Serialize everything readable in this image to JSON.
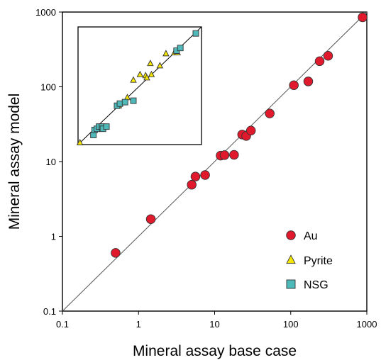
{
  "chart_data": {
    "type": "scatter",
    "xlabel": "Mineral assay base case",
    "ylabel": "Mineral assay model",
    "xscale": "log",
    "yscale": "log",
    "xlim": [
      0.1,
      1000
    ],
    "ylim": [
      0.1,
      1000
    ],
    "x_ticks": [
      "0.1",
      "1",
      "10",
      "100",
      "1000"
    ],
    "y_ticks": [
      "0.1",
      "1",
      "10",
      "100",
      "1000"
    ],
    "reference_line": "y = x",
    "grid": false,
    "legend_position": "bottom-right",
    "series": [
      {
        "name": "Au",
        "marker": "circle",
        "color": "#e0192d",
        "points": [
          [
            0.5,
            0.6
          ],
          [
            1.45,
            1.7
          ],
          [
            5.0,
            4.9
          ],
          [
            5.6,
            6.3
          ],
          [
            7.5,
            6.6
          ],
          [
            12,
            12
          ],
          [
            13.5,
            12.2
          ],
          [
            18,
            12.3
          ],
          [
            23,
            23
          ],
          [
            26,
            22
          ],
          [
            30,
            26
          ],
          [
            53,
            44
          ],
          [
            110,
            105
          ],
          [
            170,
            118
          ],
          [
            240,
            220
          ],
          [
            310,
            260
          ],
          [
            880,
            850
          ]
        ]
      },
      {
        "name": "Pyrite",
        "marker": "triangle",
        "color": "#f5e600",
        "points": []
      },
      {
        "name": "NSG",
        "marker": "square",
        "color": "#4fb8b8",
        "points": []
      }
    ],
    "inset": {
      "xscale": "log",
      "yscale": "log",
      "xlim": [
        0.17,
        7
      ],
      "ylim": [
        0.17,
        7
      ],
      "reference_line": "y = x",
      "series": [
        {
          "name": "Pyrite",
          "points": [
            [
              0.18,
              0.18
            ],
            [
              0.58,
              0.58
            ],
            [
              0.75,
              0.75
            ],
            [
              0.9,
              1.3
            ],
            [
              1.1,
              1.55
            ],
            [
              1.3,
              1.5
            ],
            [
              1.35,
              1.4
            ],
            [
              1.5,
              2.2
            ],
            [
              1.55,
              1.55
            ],
            [
              2.0,
              2.05
            ],
            [
              2.4,
              3.0
            ],
            [
              3.1,
              3.1
            ],
            [
              3.4,
              3.1
            ]
          ]
        },
        {
          "name": "NSG",
          "points": [
            [
              0.27,
              0.23
            ],
            [
              0.28,
              0.27
            ],
            [
              0.3,
              0.28
            ],
            [
              0.32,
              0.3
            ],
            [
              0.35,
              0.3
            ],
            [
              0.36,
              0.28
            ],
            [
              0.4,
              0.3
            ],
            [
              0.55,
              0.58
            ],
            [
              0.6,
              0.62
            ],
            [
              0.7,
              0.65
            ],
            [
              0.9,
              0.68
            ],
            [
              3.3,
              3.3
            ],
            [
              3.7,
              3.6
            ],
            [
              5.9,
              5.7
            ]
          ]
        }
      ]
    }
  }
}
